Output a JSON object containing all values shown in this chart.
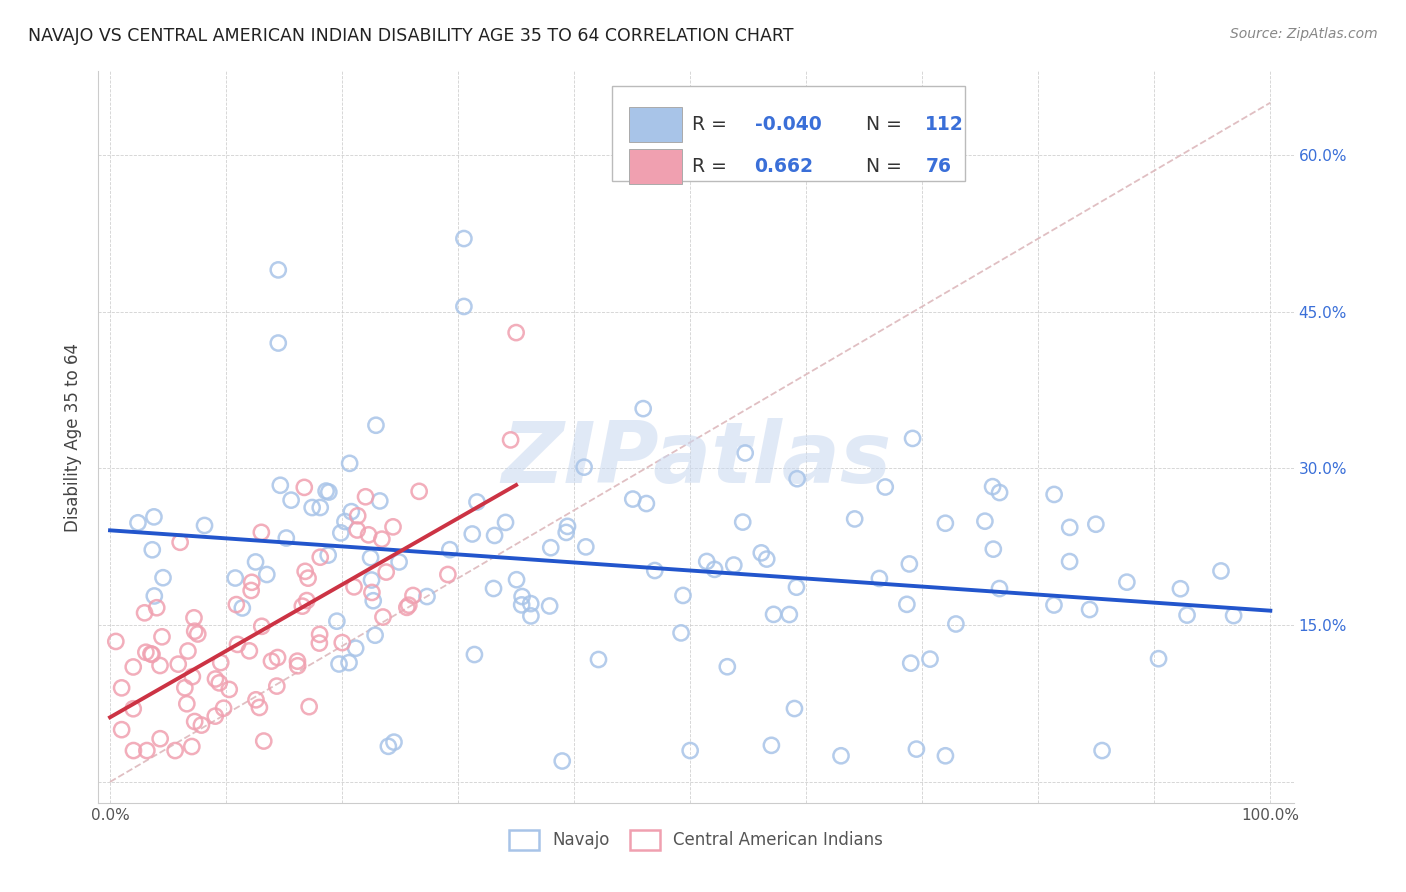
{
  "title": "NAVAJO VS CENTRAL AMERICAN INDIAN DISABILITY AGE 35 TO 64 CORRELATION CHART",
  "source": "Source: ZipAtlas.com",
  "ylabel": "Disability Age 35 to 64",
  "navajo_R": "-0.040",
  "navajo_N": "112",
  "ca_R": "0.662",
  "ca_N": "76",
  "navajo_color": "#a8c4e8",
  "ca_color": "#f0a0b0",
  "navajo_line_color": "#2255cc",
  "ca_line_color": "#cc3344",
  "diagonal_color": "#ddb8bc",
  "watermark_color": "#c8d8f0",
  "ytick_color": "#3a6fd8",
  "xtick_color": "#555555",
  "title_color": "#222222",
  "ylabel_color": "#444444",
  "legend_text_color": "#333333",
  "legend_value_color": "#3a6fd8",
  "grid_color": "#cccccc",
  "xlim": [
    0.0,
    1.0
  ],
  "ylim": [
    0.0,
    0.65
  ],
  "yticks": [
    0.0,
    0.15,
    0.3,
    0.45,
    0.6
  ],
  "yticklabels": [
    "",
    "15.0%",
    "30.0%",
    "45.0%",
    "60.0%"
  ],
  "xticks": [
    0.0,
    0.1,
    0.2,
    0.3,
    0.4,
    0.5,
    0.6,
    0.7,
    0.8,
    0.9,
    1.0
  ],
  "xticklabels": [
    "0.0%",
    "",
    "",
    "",
    "",
    "",
    "",
    "",
    "",
    "",
    "100.0%"
  ]
}
